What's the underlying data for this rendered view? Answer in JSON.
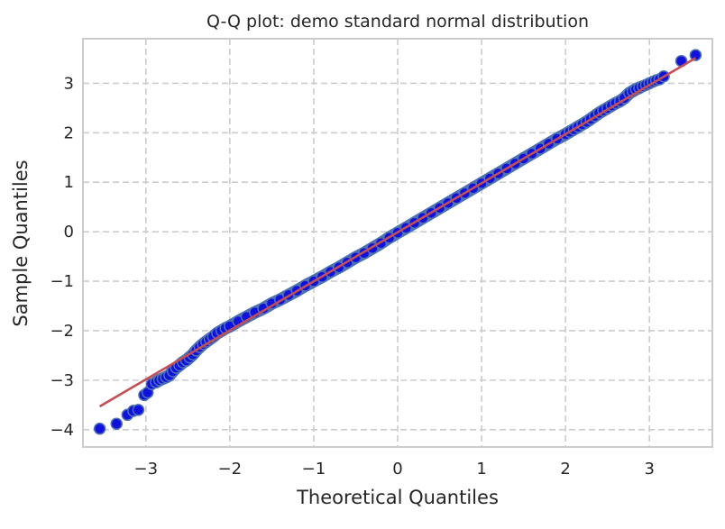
{
  "chart_data": {
    "type": "scatter",
    "title": "Q-Q plot: demo standard normal distribution",
    "xlabel": "Theoretical Quantiles",
    "ylabel": "Sample Quantiles",
    "xlim": [
      -3.75,
      3.75
    ],
    "ylim": [
      -4.35,
      3.9
    ],
    "xticks": [
      -3,
      -2,
      -1,
      0,
      1,
      2,
      3
    ],
    "yticks": [
      -4,
      -3,
      -2,
      -1,
      0,
      1,
      2,
      3
    ],
    "xtick_labels": [
      "−3",
      "−2",
      "−1",
      "0",
      "1",
      "2",
      "3"
    ],
    "ytick_labels": [
      "−4",
      "−3",
      "−2",
      "−1",
      "0",
      "1",
      "2",
      "3"
    ],
    "grid": true,
    "grid_style": "dashed",
    "colors": {
      "points_fill": "#1010e0",
      "points_edge": "#4c72b0",
      "band": "#4c72b0",
      "reference_line": "#c44e52",
      "grid": "#cccccc",
      "frame": "#cccccc"
    },
    "series": [
      {
        "kind": "points",
        "x": [
          -3.55,
          -3.35,
          -3.22,
          -3.15,
          -3.09,
          -3.02,
          -2.98,
          -2.93,
          -2.88,
          -2.84,
          -2.8,
          -2.76,
          -2.72,
          -2.68,
          -2.64,
          -2.6,
          -2.56,
          -2.52,
          -2.48,
          -2.44,
          -2.4,
          -2.36,
          -2.32,
          -2.28,
          -2.24,
          -2.2,
          -2.15,
          -2.1,
          -2.05,
          -2.0,
          -1.9,
          -1.8,
          -1.7,
          -1.6,
          -1.5,
          -1.4,
          -1.3,
          -1.2,
          -1.1,
          -1.0,
          -0.9,
          -0.8,
          -0.7,
          -0.6,
          -0.5,
          -0.4,
          -0.3,
          -0.2,
          -0.1,
          0.0,
          0.1,
          0.2,
          0.3,
          0.4,
          0.5,
          0.6,
          0.7,
          0.8,
          0.9,
          1.0,
          1.1,
          1.2,
          1.3,
          1.4,
          1.5,
          1.6,
          1.7,
          1.8,
          1.9,
          2.0,
          2.05,
          2.1,
          2.15,
          2.2,
          2.25,
          2.3,
          2.35,
          2.4,
          2.45,
          2.5,
          2.55,
          2.6,
          2.65,
          2.7,
          2.76,
          2.8,
          2.84,
          2.88,
          2.92,
          2.96,
          3.0,
          3.04,
          3.08,
          3.12,
          3.17,
          3.38,
          3.55
        ],
        "y": [
          -3.98,
          -3.88,
          -3.7,
          -3.62,
          -3.6,
          -3.3,
          -3.25,
          -3.08,
          -3.04,
          -3.0,
          -2.97,
          -2.94,
          -2.9,
          -2.82,
          -2.75,
          -2.7,
          -2.64,
          -2.6,
          -2.54,
          -2.48,
          -2.4,
          -2.33,
          -2.27,
          -2.22,
          -2.17,
          -2.12,
          -2.05,
          -2.0,
          -1.95,
          -1.91,
          -1.81,
          -1.72,
          -1.63,
          -1.55,
          -1.45,
          -1.37,
          -1.28,
          -1.19,
          -1.09,
          -1.0,
          -0.91,
          -0.81,
          -0.72,
          -0.62,
          -0.52,
          -0.43,
          -0.33,
          -0.23,
          -0.12,
          -0.02,
          0.08,
          0.18,
          0.28,
          0.38,
          0.48,
          0.58,
          0.68,
          0.78,
          0.88,
          0.98,
          1.08,
          1.18,
          1.28,
          1.38,
          1.48,
          1.58,
          1.68,
          1.78,
          1.88,
          1.97,
          2.02,
          2.07,
          2.12,
          2.17,
          2.22,
          2.28,
          2.34,
          2.4,
          2.45,
          2.5,
          2.55,
          2.6,
          2.64,
          2.7,
          2.8,
          2.84,
          2.88,
          2.91,
          2.94,
          2.97,
          3.0,
          3.03,
          3.06,
          3.08,
          3.14,
          3.45,
          3.57
        ]
      },
      {
        "kind": "reference_line",
        "x": [
          -3.55,
          3.55
        ],
        "y": [
          -3.53,
          3.51
        ]
      }
    ]
  }
}
